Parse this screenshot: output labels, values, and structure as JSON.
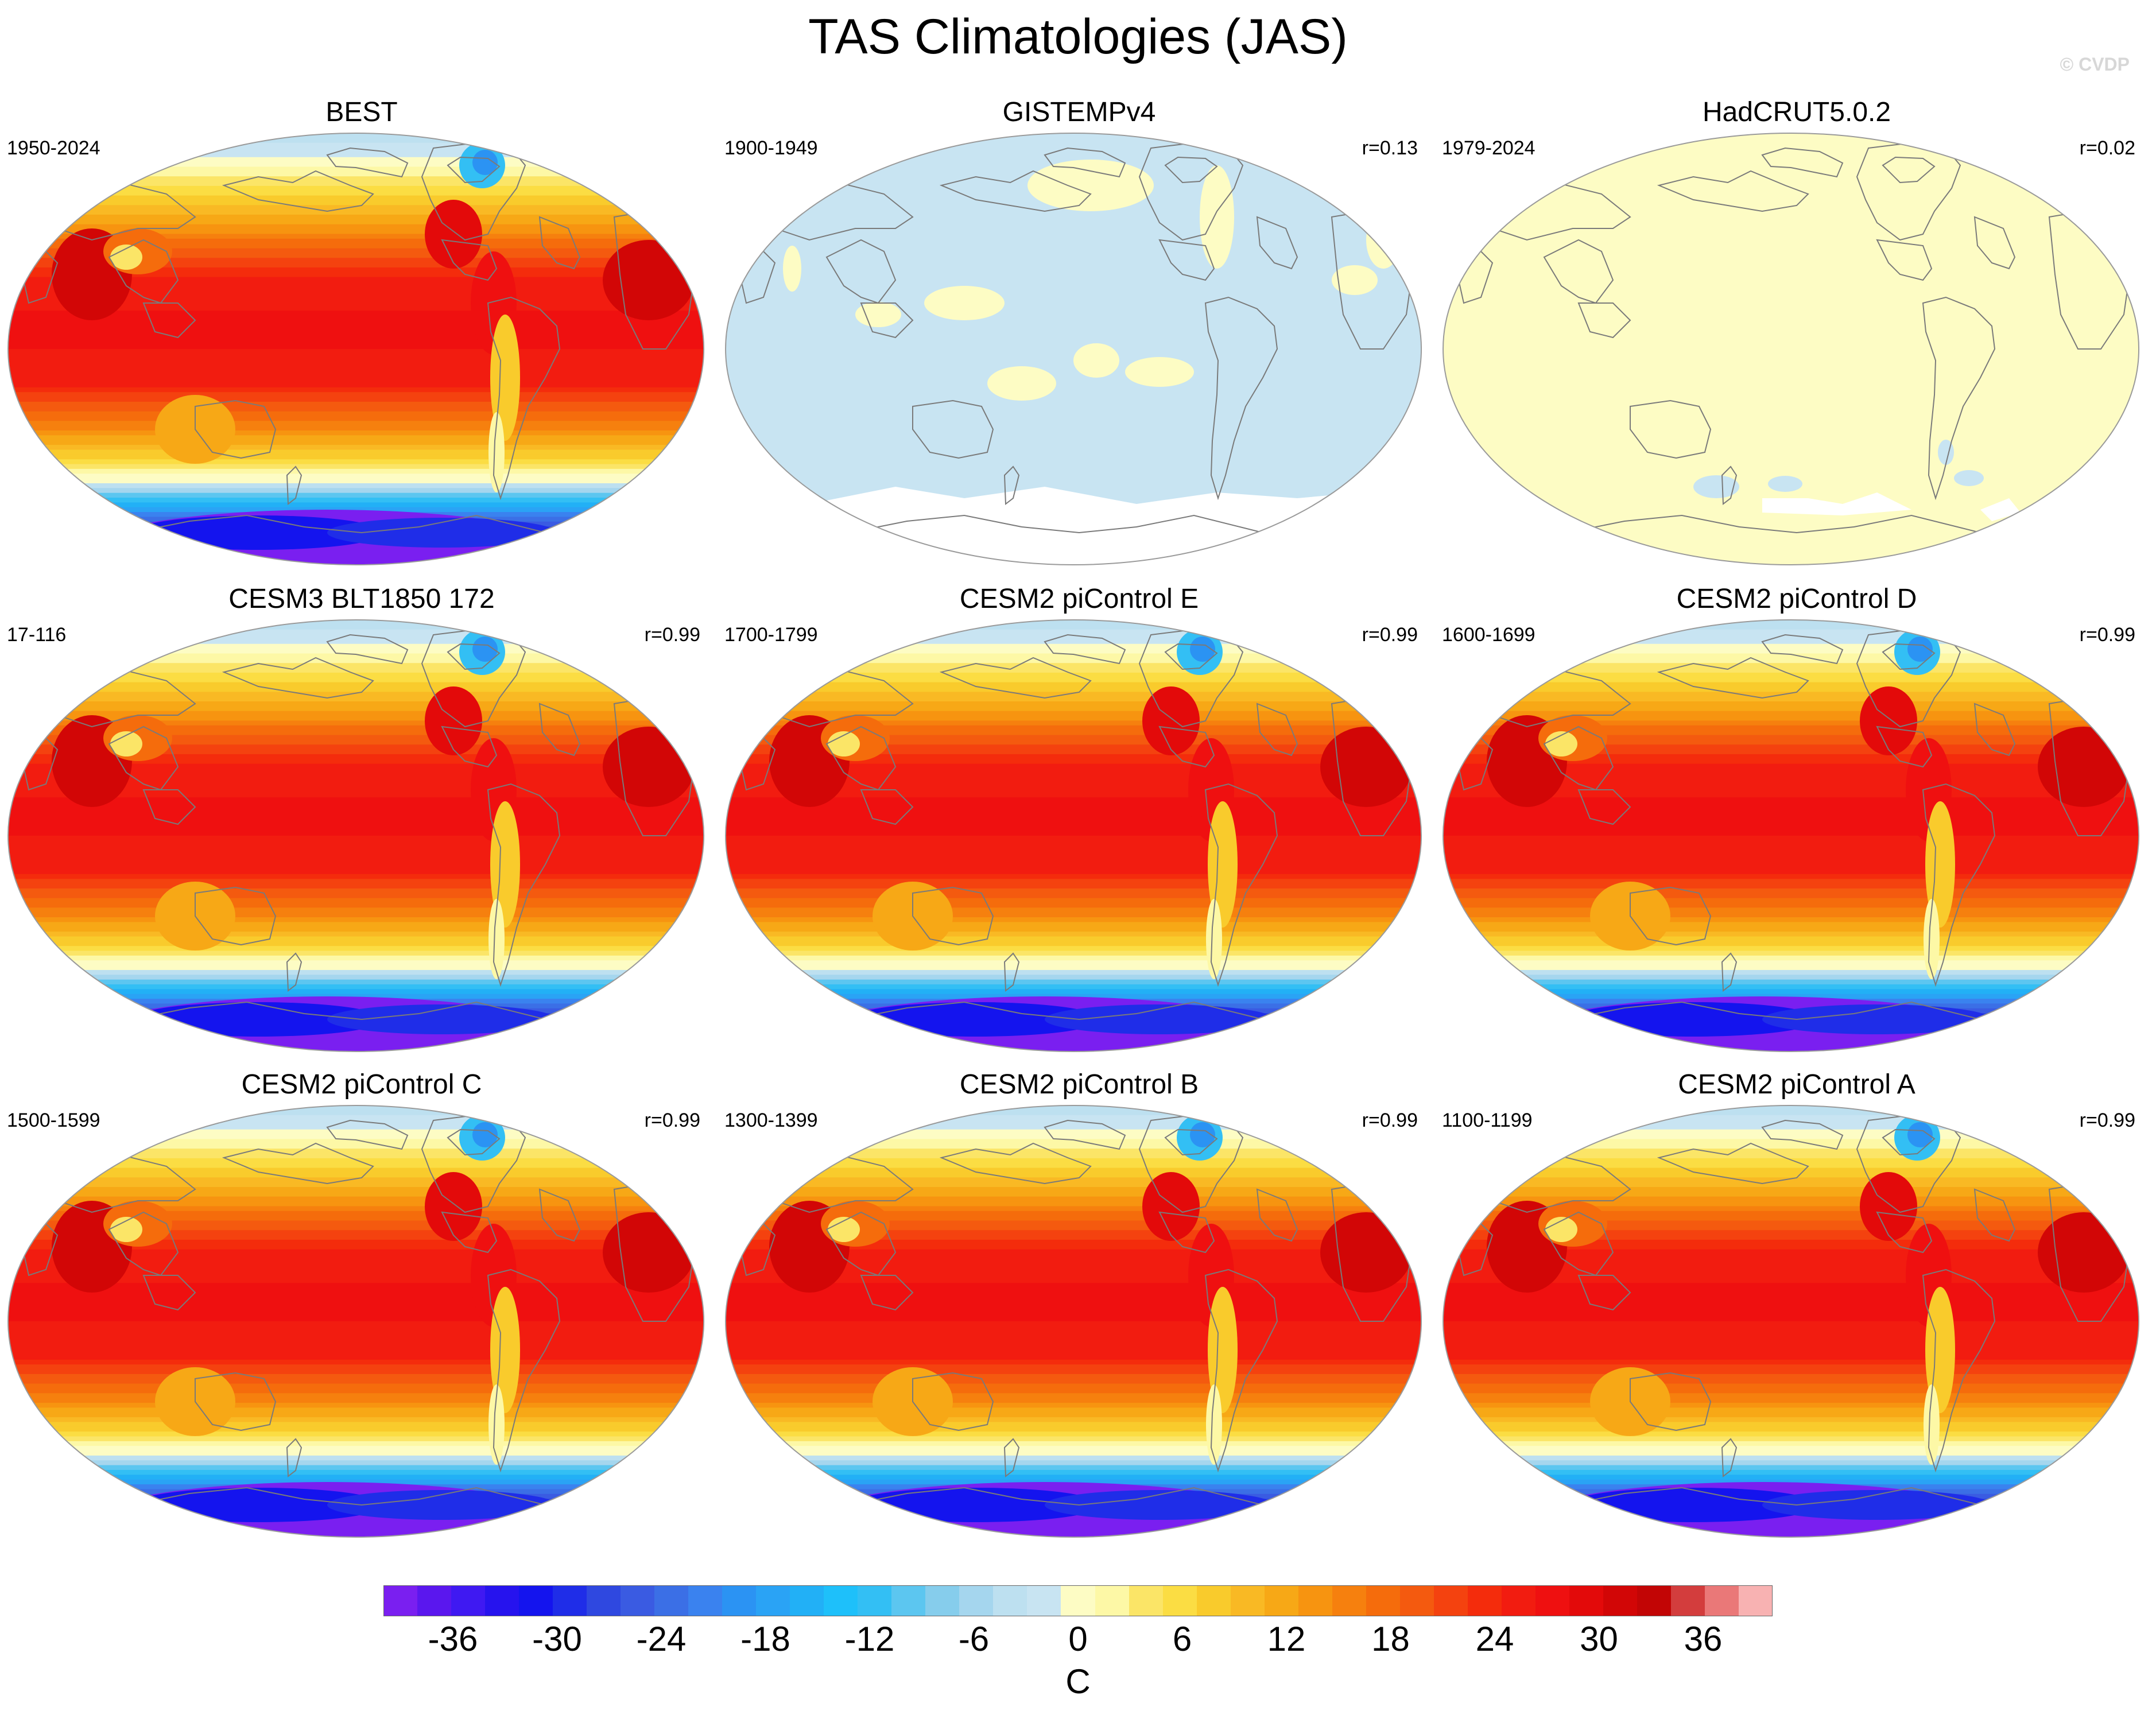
{
  "title": "TAS Climatologies (JAS)",
  "watermark": "© CVDP",
  "chart_data": {
    "type": "heatmap",
    "variable": "TAS",
    "season": "JAS",
    "units": "C",
    "colorbar": {
      "ticks": [
        "-36",
        "-30",
        "-24",
        "-18",
        "-12",
        "-6",
        "0",
        "6",
        "12",
        "18",
        "24",
        "30",
        "36"
      ],
      "levels": [
        -40,
        -38,
        -36,
        -34,
        -32,
        -30,
        -28,
        -26,
        -24,
        -22,
        -20,
        -18,
        -16,
        -14,
        -12,
        -10,
        -8,
        -6,
        -4,
        -2,
        0,
        2,
        4,
        6,
        8,
        10,
        12,
        14,
        16,
        18,
        20,
        22,
        24,
        26,
        28,
        30,
        32,
        34,
        36,
        38,
        40
      ],
      "colors": [
        "#7a1ff0",
        "#5a17ee",
        "#3f19f2",
        "#2613ee",
        "#1414ee",
        "#1f2de8",
        "#2f48e0",
        "#3a5be2",
        "#3b6fe6",
        "#3a82ef",
        "#2b93f3",
        "#2aa3f5",
        "#22b0f6",
        "#1ec0fa",
        "#33bff4",
        "#5cc6f0",
        "#86cdec",
        "#a5d6ee",
        "#bde0f0",
        "#c8e4f2",
        "#fdfcc4",
        "#fdf8a6",
        "#fbe567",
        "#fbdd43",
        "#f9cb2c",
        "#f9b924",
        "#f7a816",
        "#f79410",
        "#f6800e",
        "#f56c0c",
        "#f45a0f",
        "#f4420f",
        "#f42c0c",
        "#f21c10",
        "#ef1010",
        "#e30a0a",
        "#d20606",
        "#c20505",
        "#d33d3d",
        "#ea7878",
        "#f8b2b2"
      ]
    },
    "panels": [
      {
        "name": "BEST",
        "period": "1950-2024",
        "r": "",
        "field": "model"
      },
      {
        "name": "GISTEMPv4",
        "period": "1900-1949",
        "r": "r=0.13",
        "field": "gistemp"
      },
      {
        "name": "HadCRUT5.0.2",
        "period": "1979-2024",
        "r": "r=0.02",
        "field": "hadcrut"
      },
      {
        "name": "CESM3 BLT1850 172",
        "period": "17-116",
        "r": "r=0.99",
        "field": "model"
      },
      {
        "name": "CESM2 piControl E",
        "period": "1700-1799",
        "r": "r=0.99",
        "field": "model"
      },
      {
        "name": "CESM2 piControl D",
        "period": "1600-1699",
        "r": "r=0.99",
        "field": "model"
      },
      {
        "name": "CESM2 piControl C",
        "period": "1500-1599",
        "r": "r=0.99",
        "field": "model"
      },
      {
        "name": "CESM2 piControl B",
        "period": "1300-1399",
        "r": "r=0.99",
        "field": "model"
      },
      {
        "name": "CESM2 piControl A",
        "period": "1100-1199",
        "r": "r=0.99",
        "field": "model"
      }
    ],
    "zonal_profile_model": {
      "lat": [
        90,
        75,
        60,
        45,
        30,
        15,
        0,
        -15,
        -30,
        -45,
        -55,
        -62,
        -70,
        -80,
        -90
      ],
      "value": [
        -4,
        2,
        10,
        18,
        26,
        28,
        28,
        26,
        18,
        8,
        0,
        -10,
        -22,
        -32,
        -40
      ]
    },
    "gistemp_anomaly_c": [
      -2,
      2
    ],
    "hadcrut_anomaly_c": [
      -2,
      2
    ]
  }
}
